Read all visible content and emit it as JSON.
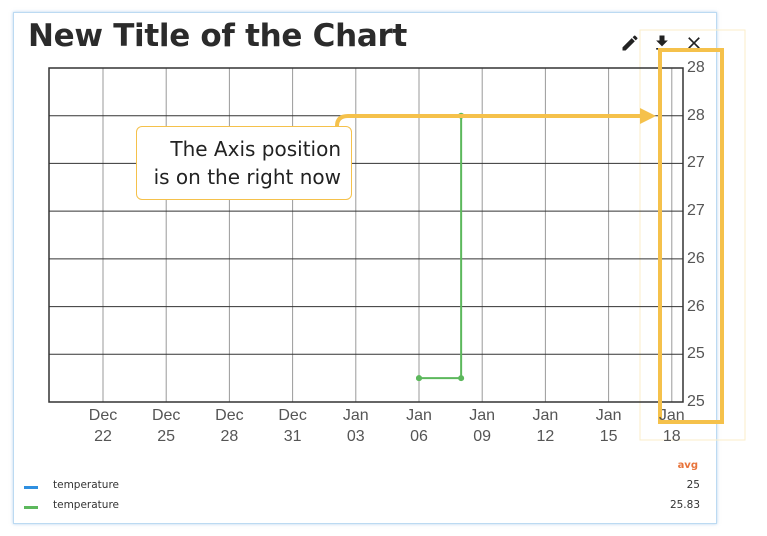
{
  "chart_title": "New Title of the Chart",
  "toolbar": {
    "edit_icon": "pencil-icon",
    "download_icon": "download-icon",
    "close_icon": "close-icon"
  },
  "callout": {
    "line1": "The Axis position",
    "line2": "is on the right now"
  },
  "colors": {
    "accent_yellow": "#f5c14b",
    "series_blue": "#2f8fe0",
    "series_green": "#5cb85c",
    "avg_header": "#e8743b"
  },
  "legend": {
    "header": "avg",
    "rows": [
      {
        "name": "temperature",
        "value": "25",
        "color": "#2f8fe0"
      },
      {
        "name": "temperature",
        "value": "25.83",
        "color": "#5cb85c"
      }
    ]
  },
  "chart_data": {
    "type": "line",
    "y_axis_position": "right",
    "x_tick_labels": [
      [
        "Dec",
        "22"
      ],
      [
        "Dec",
        "25"
      ],
      [
        "Dec",
        "28"
      ],
      [
        "Dec",
        "31"
      ],
      [
        "Jan",
        "03"
      ],
      [
        "Jan",
        "06"
      ],
      [
        "Jan",
        "09"
      ],
      [
        "Jan",
        "12"
      ],
      [
        "Jan",
        "15"
      ],
      [
        "Jan",
        "18"
      ]
    ],
    "y_tick_labels": [
      "28",
      "28",
      "27",
      "27",
      "26",
      "26",
      "25",
      "25"
    ],
    "ylim": [
      24.75,
      28.25
    ],
    "grid": true,
    "series": [
      {
        "color": "#5cb85c",
        "points": [
          {
            "x": "Jan 06",
            "y": 25
          },
          {
            "x": "Jan 06",
            "y": 25
          },
          {
            "x": "Jan 08",
            "y": 25
          },
          {
            "x": "Jan 08",
            "y": 27.75
          }
        ]
      }
    ]
  }
}
